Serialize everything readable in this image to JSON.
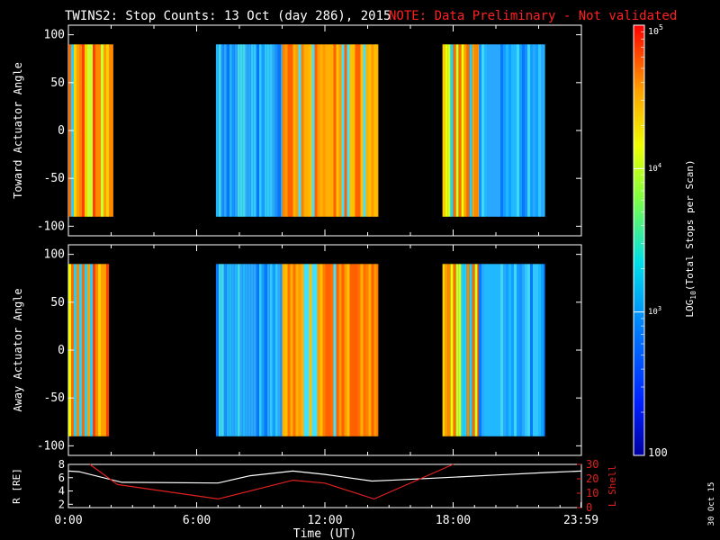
{
  "header": {
    "title": "TWINS2: Stop Counts: 13 Oct (day 286), 2015",
    "note": "NOTE: Data Preliminary - Not validated"
  },
  "side_date": "30 Oct 15",
  "colors": {
    "background": "#000000",
    "axes": "#ffffff",
    "note": "#ff2020",
    "lshell": "#e02020",
    "radius": "#ffffff"
  },
  "chart_data": [
    {
      "type": "heatmap",
      "panel": "top",
      "ylabel": "Toward Actuator Angle",
      "xlim": [
        0,
        24
      ],
      "ylim": [
        -110,
        110
      ],
      "yticks": [
        100,
        50,
        0,
        -50,
        -100
      ],
      "data_blocks": [
        {
          "t_start": 0.0,
          "t_end": 2.1,
          "level": "high-mixed"
        },
        {
          "t_start": 6.9,
          "t_end": 10.0,
          "level": "low"
        },
        {
          "t_start": 10.0,
          "t_end": 14.5,
          "level": "high"
        },
        {
          "t_start": 17.5,
          "t_end": 19.2,
          "level": "high-mixed"
        },
        {
          "t_start": 19.2,
          "t_end": 22.3,
          "level": "low"
        }
      ],
      "angle_range": [
        -90,
        90
      ]
    },
    {
      "type": "heatmap",
      "panel": "middle",
      "ylabel": "Away Actuator Angle",
      "xlim": [
        0,
        24
      ],
      "ylim": [
        -110,
        110
      ],
      "yticks": [
        100,
        50,
        0,
        -50,
        -100
      ],
      "data_blocks": [
        {
          "t_start": 0.0,
          "t_end": 1.9,
          "level": "high-mixed"
        },
        {
          "t_start": 6.9,
          "t_end": 10.0,
          "level": "low"
        },
        {
          "t_start": 10.0,
          "t_end": 14.5,
          "level": "high"
        },
        {
          "t_start": 17.5,
          "t_end": 19.2,
          "level": "high-mixed"
        },
        {
          "t_start": 19.2,
          "t_end": 22.3,
          "level": "low"
        }
      ],
      "angle_range": [
        -90,
        90
      ]
    },
    {
      "type": "line",
      "panel": "bottom",
      "xlabel": "Time (UT)",
      "xticks": [
        "0:00",
        "6:00",
        "12:00",
        "18:00",
        "23:59"
      ],
      "xtick_hours": [
        0,
        6,
        12,
        18,
        23.98
      ],
      "ylabel_left": "R [RE]",
      "ylabel_right": "L Shell",
      "left_ylim": [
        1.5,
        8
      ],
      "left_yticks": [
        "8",
        "6",
        "4",
        "2"
      ],
      "left_ytick_values": [
        8,
        6,
        4,
        2
      ],
      "right_ylim": [
        0,
        30
      ],
      "right_yticks": [
        "30",
        "20",
        "10",
        "0"
      ],
      "right_ytick_values": [
        30,
        20,
        10,
        0
      ],
      "series": [
        {
          "axis": "left",
          "x": [
            0,
            0.5,
            2.5,
            7.0,
            8.5,
            10.5,
            12.0,
            14.2,
            15.0,
            17.5,
            20.0,
            22.5,
            23.98
          ],
          "y": [
            7.0,
            6.9,
            5.3,
            5.2,
            6.3,
            7.0,
            6.5,
            5.5,
            5.6,
            6.0,
            6.4,
            6.8,
            7.0
          ]
        },
        {
          "axis": "right",
          "x": [
            1.0,
            2.3,
            7.0,
            10.5,
            12.0,
            14.3,
            18.0
          ],
          "y": [
            30,
            16,
            6,
            19,
            17,
            6,
            30
          ]
        }
      ]
    }
  ],
  "colorbar": {
    "label": "LOG10(Total Stops per Scan)",
    "label_prefix": "LOG",
    "label_sub": "10",
    "label_suffix": "(Total Stops per Scan)",
    "tick_top_base": "10",
    "tick_top_exp": "5",
    "tick_mid_base": "10",
    "tick_mid_exp": "4",
    "tick_low_base": "10",
    "tick_low_exp": "3",
    "tick_bottom": "100",
    "ylim_log": [
      2,
      5
    ],
    "tick_values_log": [
      5,
      4,
      3,
      2
    ]
  }
}
